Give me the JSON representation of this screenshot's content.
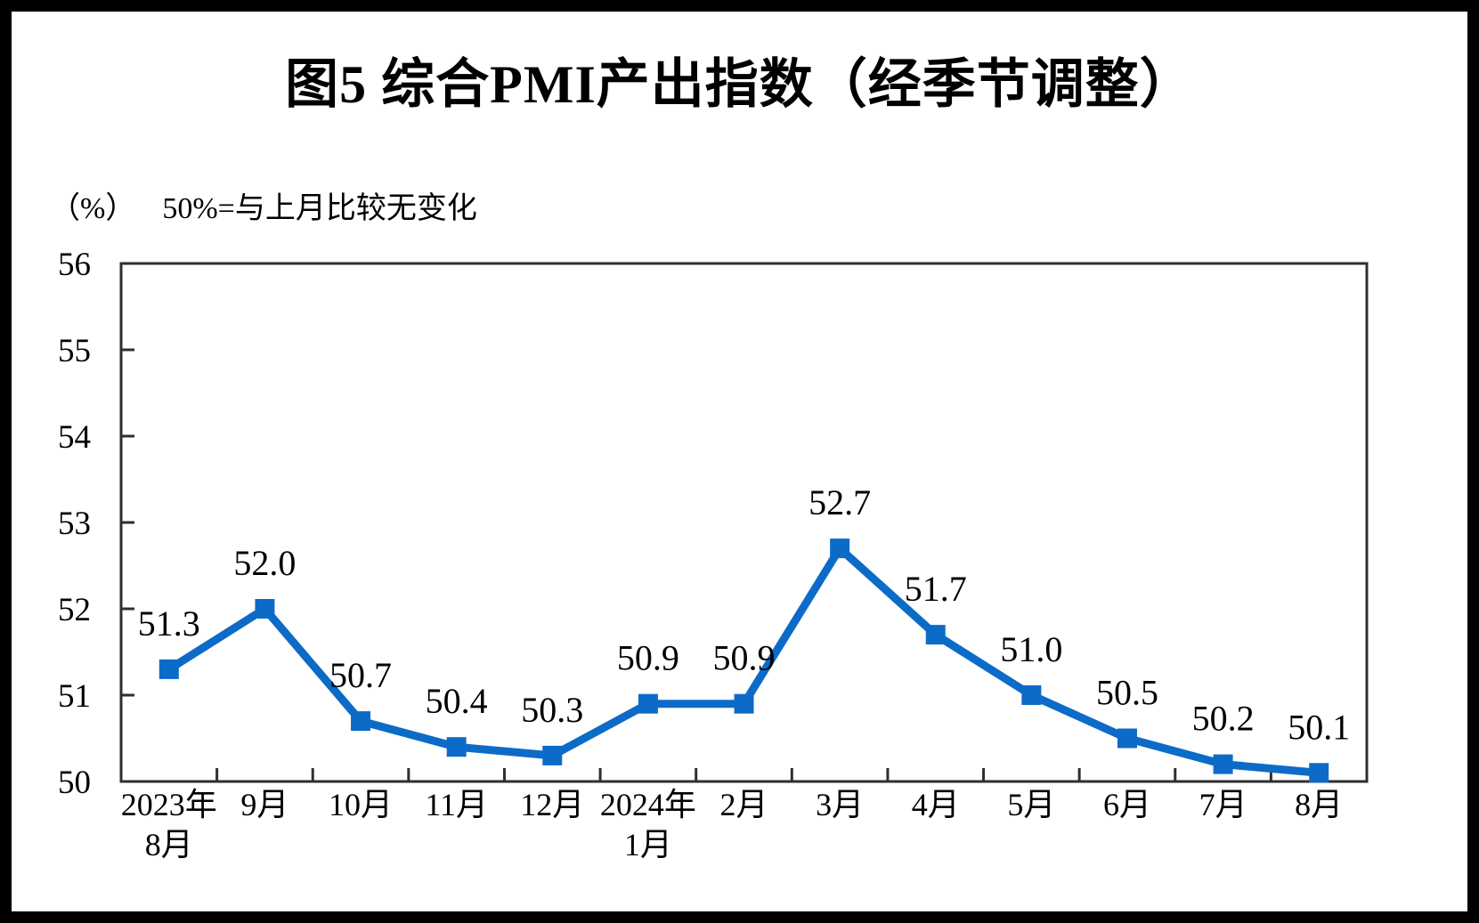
{
  "title": "图5 综合PMI产出指数（经季节调整）",
  "subtitle": {
    "unit": "（%）",
    "note": "50%=与上月比较无变化"
  },
  "chart_data": {
    "type": "line",
    "title": "图5 综合PMI产出指数（经季节调整）",
    "unit_note": "（%） 50%=与上月比较无变化",
    "categories": [
      "2023年8月",
      "9月",
      "10月",
      "11月",
      "12月",
      "2024年1月",
      "2月",
      "3月",
      "4月",
      "5月",
      "6月",
      "7月",
      "8月"
    ],
    "x_tick_lines": [
      [
        "2023年",
        "8月"
      ],
      [
        "9月"
      ],
      [
        "10月"
      ],
      [
        "11月"
      ],
      [
        "12月"
      ],
      [
        "2024年",
        "1月"
      ],
      [
        "2月"
      ],
      [
        "3月"
      ],
      [
        "4月"
      ],
      [
        "5月"
      ],
      [
        "6月"
      ],
      [
        "7月"
      ],
      [
        "8月"
      ]
    ],
    "values": [
      51.3,
      52.0,
      50.7,
      50.4,
      50.3,
      50.9,
      50.9,
      52.7,
      51.7,
      51.0,
      50.5,
      50.2,
      50.1
    ],
    "point_labels": [
      "51.3",
      "52.0",
      "50.7",
      "50.4",
      "50.3",
      "50.9",
      "50.9",
      "52.7",
      "51.7",
      "51.0",
      "50.5",
      "50.2",
      "50.1"
    ],
    "ylim": [
      50,
      56
    ],
    "ytick_step": 1,
    "ytick_labels": [
      "50",
      "51",
      "52",
      "53",
      "54",
      "55",
      "56"
    ],
    "grid": false,
    "legend": "none",
    "marker": "square",
    "line_color": "#0D6BC8",
    "axis_color": "#2F2F2F",
    "text_color": "#000000"
  }
}
